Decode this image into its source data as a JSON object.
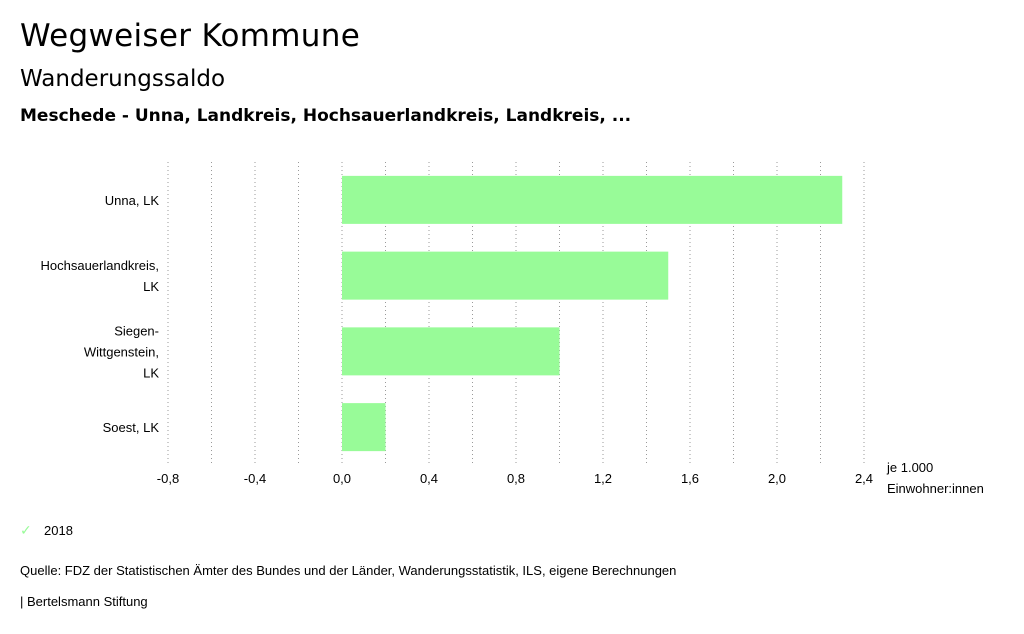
{
  "header": {
    "title": "Wegweiser Kommune",
    "subtitle": "Wanderungssaldo",
    "region": "Meschede - Unna, Landkreis, Hochsauerlandkreis, Landkreis, ..."
  },
  "chart_data": {
    "type": "bar",
    "orientation": "horizontal",
    "categories": [
      [
        "Unna, LK"
      ],
      [
        "Hochsauerlandkreis,",
        "LK"
      ],
      [
        "Siegen-",
        "Wittgenstein,",
        "LK"
      ],
      [
        "Soest, LK"
      ]
    ],
    "series": [
      {
        "name": "2018",
        "values": [
          2.3,
          1.5,
          1.0,
          0.2
        ],
        "color": "#98fb98"
      }
    ],
    "xlim": [
      -0.8,
      2.4
    ],
    "ticks": [
      "-0,8",
      "-0,4",
      "0,0",
      "0,4",
      "0,8",
      "1,2",
      "1,6",
      "2,0",
      "2,4"
    ],
    "tick_values": [
      -0.8,
      -0.4,
      0.0,
      0.4,
      0.8,
      1.2,
      1.6,
      2.0,
      2.4
    ],
    "unit_label": [
      "je 1.000",
      "Einwohner:innen"
    ],
    "grid": true
  },
  "legend": {
    "label": "2018",
    "icon": "check-icon"
  },
  "source": "Quelle: FDZ der Statistischen Ämter des Bundes und der Länder, Wanderungsstatistik, ILS, eigene Berechnungen",
  "footer": "| Bertelsmann Stiftung"
}
